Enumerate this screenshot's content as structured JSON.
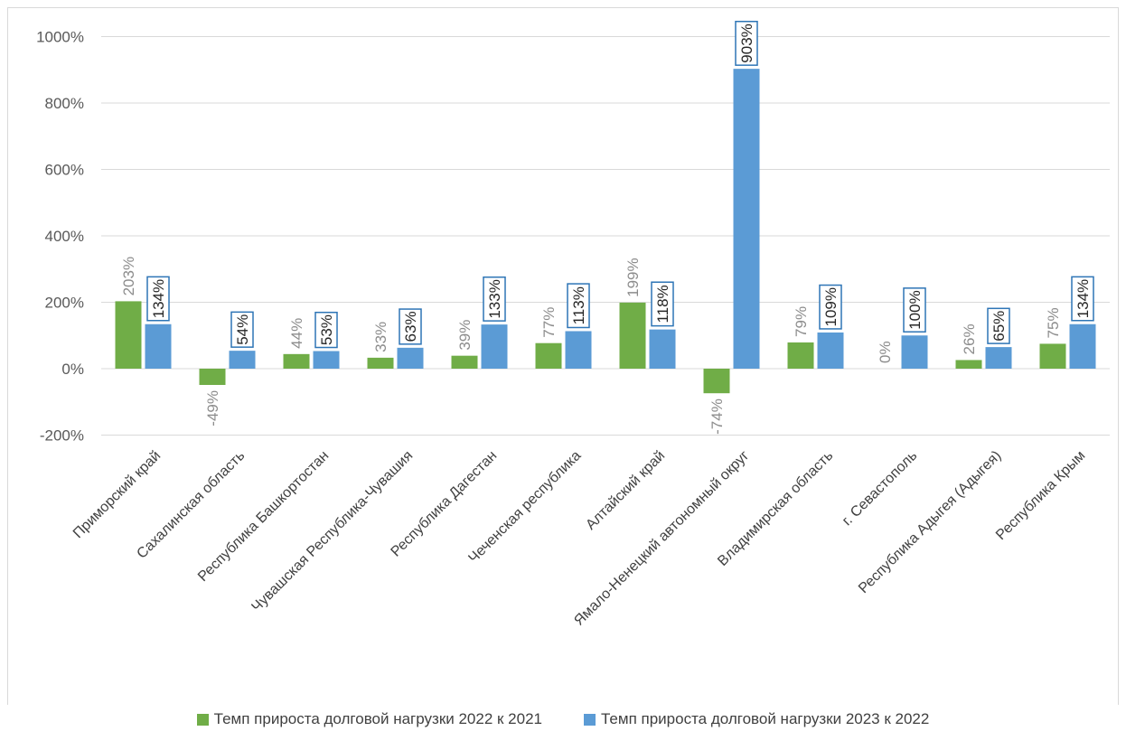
{
  "chart_data": {
    "type": "bar",
    "categories": [
      "Приморский край",
      "Сахалинская область",
      "Республика Башкортостан",
      "Чувашская Республика-Чувашия",
      "Республика Дагестан",
      "Чеченская республика",
      "Алтайский край",
      "Ямало-Ненецкий автономный округ",
      "Владимирская область",
      "г. Севастополь",
      "Республика Адыгея (Адыгея)",
      "Республика Крым"
    ],
    "series": [
      {
        "name": "Темп прироста долговой нагрузки 2022 к 2021",
        "color": "#70ad47",
        "values": [
          203,
          -49,
          44,
          33,
          39,
          77,
          199,
          -74,
          79,
          0,
          26,
          75
        ],
        "labels": [
          "203%",
          "-49%",
          "44%",
          "33%",
          "39%",
          "77%",
          "199%",
          "-74%",
          "79%",
          "0%",
          "26%",
          "75%"
        ]
      },
      {
        "name": "Темп прироста долговой нагрузки 2023 к 2022",
        "color": "#5b9bd5",
        "values": [
          134,
          54,
          53,
          63,
          133,
          113,
          118,
          903,
          109,
          100,
          65,
          134
        ],
        "labels": [
          "134%",
          "54%",
          "53%",
          "63%",
          "133%",
          "113%",
          "118%",
          "903%",
          "109%",
          "100%",
          "65%",
          "134%"
        ]
      }
    ],
    "yticks": [
      "1000%",
      "800%",
      "600%",
      "400%",
      "200%",
      "0%",
      "-200%"
    ],
    "ylim": [
      -200,
      1000
    ],
    "grid": true,
    "legend_position": "bottom"
  }
}
